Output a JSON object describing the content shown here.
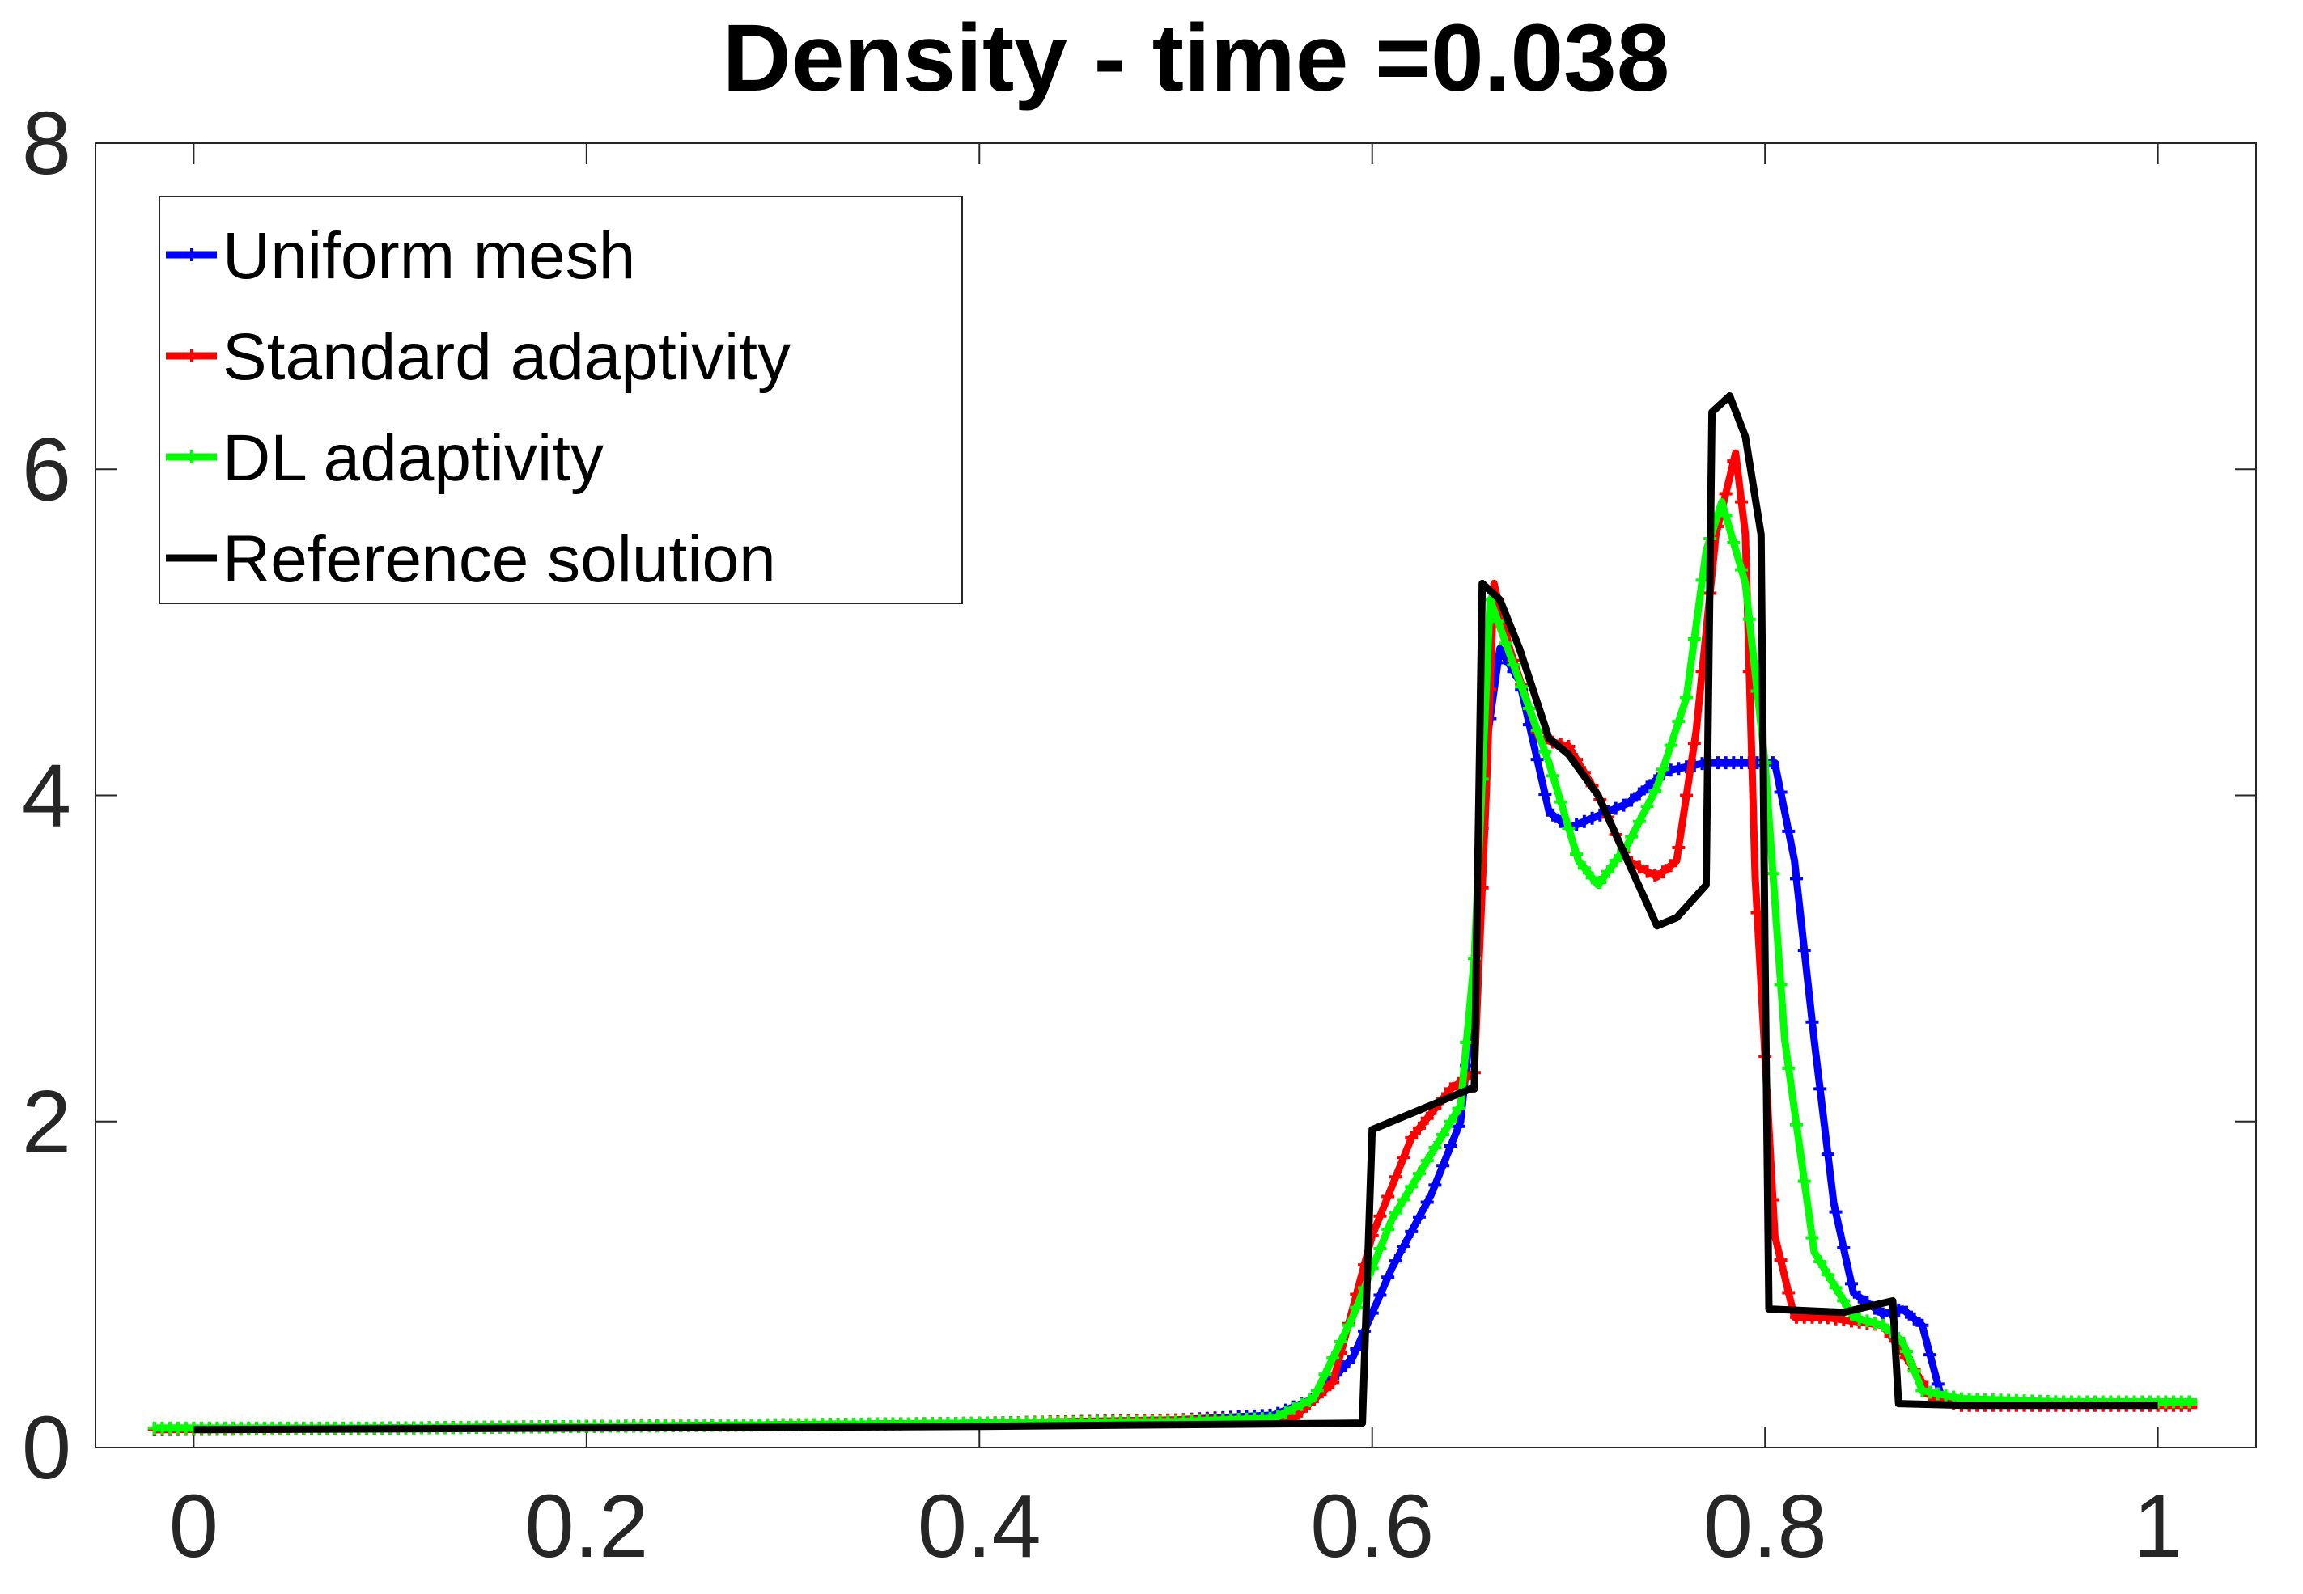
{
  "chart_data": {
    "type": "line",
    "title": "Density - time =0.038",
    "xlabel": "",
    "ylabel": "",
    "xlim": [
      -0.05,
      1.05
    ],
    "ylim": [
      0,
      8
    ],
    "xticks": [
      0,
      0.2,
      0.4,
      0.6,
      0.8,
      1
    ],
    "xtick_labels": [
      "0",
      "0.2",
      "0.4",
      "0.6",
      "0.8",
      "1"
    ],
    "yticks": [
      0,
      2,
      4,
      6,
      8
    ],
    "ytick_labels": [
      "0",
      "2",
      "4",
      "6",
      "8"
    ],
    "grid": false,
    "legend_position": "top-left",
    "series": [
      {
        "name": "Uniform mesh",
        "color": "#0000ff",
        "marker": "plus",
        "points": [
          [
            -0.02,
            0.11
          ],
          [
            0.1,
            0.12
          ],
          [
            0.2,
            0.13
          ],
          [
            0.3,
            0.14
          ],
          [
            0.4,
            0.15
          ],
          [
            0.5,
            0.17
          ],
          [
            0.55,
            0.2
          ],
          [
            0.57,
            0.3
          ],
          [
            0.59,
            0.55
          ],
          [
            0.61,
            1.1
          ],
          [
            0.63,
            1.55
          ],
          [
            0.645,
            2.0
          ],
          [
            0.652,
            2.8
          ],
          [
            0.658,
            4.3
          ],
          [
            0.665,
            4.9
          ],
          [
            0.675,
            4.7
          ],
          [
            0.69,
            3.9
          ],
          [
            0.7,
            3.8
          ],
          [
            0.71,
            3.85
          ],
          [
            0.73,
            3.95
          ],
          [
            0.75,
            4.15
          ],
          [
            0.77,
            4.2
          ],
          [
            0.79,
            4.2
          ],
          [
            0.805,
            4.2
          ],
          [
            0.815,
            3.6
          ],
          [
            0.825,
            2.5
          ],
          [
            0.835,
            1.5
          ],
          [
            0.845,
            0.95
          ],
          [
            0.86,
            0.82
          ],
          [
            0.87,
            0.85
          ],
          [
            0.88,
            0.75
          ],
          [
            0.89,
            0.3
          ],
          [
            0.9,
            0.26
          ],
          [
            1.0,
            0.26
          ],
          [
            1.02,
            0.26
          ]
        ]
      },
      {
        "name": "Standard adaptivity",
        "color": "#ff0000",
        "marker": "plus",
        "points": [
          [
            -0.02,
            0.11
          ],
          [
            0.1,
            0.12
          ],
          [
            0.2,
            0.13
          ],
          [
            0.3,
            0.14
          ],
          [
            0.4,
            0.15
          ],
          [
            0.5,
            0.17
          ],
          [
            0.56,
            0.18
          ],
          [
            0.58,
            0.4
          ],
          [
            0.6,
            1.3
          ],
          [
            0.62,
            1.9
          ],
          [
            0.64,
            2.2
          ],
          [
            0.652,
            2.3
          ],
          [
            0.658,
            4.0
          ],
          [
            0.662,
            5.3
          ],
          [
            0.67,
            4.9
          ],
          [
            0.685,
            4.35
          ],
          [
            0.7,
            4.3
          ],
          [
            0.715,
            4.0
          ],
          [
            0.73,
            3.6
          ],
          [
            0.745,
            3.5
          ],
          [
            0.755,
            3.6
          ],
          [
            0.765,
            4.4
          ],
          [
            0.775,
            5.6
          ],
          [
            0.785,
            6.1
          ],
          [
            0.79,
            5.6
          ],
          [
            0.795,
            3.5
          ],
          [
            0.805,
            1.3
          ],
          [
            0.815,
            0.8
          ],
          [
            0.83,
            0.8
          ],
          [
            0.86,
            0.75
          ],
          [
            0.875,
            0.5
          ],
          [
            0.885,
            0.3
          ],
          [
            0.9,
            0.26
          ],
          [
            1.0,
            0.26
          ],
          [
            1.02,
            0.26
          ]
        ]
      },
      {
        "name": "DL adaptivity",
        "color": "#00ff00",
        "marker": "plus",
        "points": [
          [
            -0.02,
            0.12
          ],
          [
            0.1,
            0.12
          ],
          [
            0.2,
            0.13
          ],
          [
            0.3,
            0.14
          ],
          [
            0.4,
            0.15
          ],
          [
            0.5,
            0.16
          ],
          [
            0.55,
            0.18
          ],
          [
            0.57,
            0.3
          ],
          [
            0.59,
            0.8
          ],
          [
            0.61,
            1.4
          ],
          [
            0.63,
            1.8
          ],
          [
            0.645,
            2.1
          ],
          [
            0.652,
            3.0
          ],
          [
            0.66,
            5.2
          ],
          [
            0.675,
            4.7
          ],
          [
            0.69,
            4.2
          ],
          [
            0.705,
            3.6
          ],
          [
            0.715,
            3.45
          ],
          [
            0.73,
            3.7
          ],
          [
            0.745,
            4.05
          ],
          [
            0.76,
            4.6
          ],
          [
            0.77,
            5.5
          ],
          [
            0.778,
            5.8
          ],
          [
            0.79,
            5.3
          ],
          [
            0.8,
            4.2
          ],
          [
            0.81,
            2.5
          ],
          [
            0.825,
            1.2
          ],
          [
            0.845,
            0.8
          ],
          [
            0.86,
            0.75
          ],
          [
            0.87,
            0.65
          ],
          [
            0.88,
            0.35
          ],
          [
            0.9,
            0.3
          ],
          [
            0.95,
            0.28
          ],
          [
            1.02,
            0.28
          ]
        ]
      },
      {
        "name": "Reference solution",
        "color": "#000000",
        "marker": "none",
        "points": [
          [
            0.0,
            0.11
          ],
          [
            0.2,
            0.12
          ],
          [
            0.4,
            0.13
          ],
          [
            0.59,
            0.15
          ],
          [
            0.595,
            0.15
          ],
          [
            0.6,
            1.95
          ],
          [
            0.65,
            2.2
          ],
          [
            0.652,
            2.2
          ],
          [
            0.656,
            5.3
          ],
          [
            0.665,
            5.2
          ],
          [
            0.675,
            4.9
          ],
          [
            0.69,
            4.35
          ],
          [
            0.7,
            4.25
          ],
          [
            0.715,
            4.0
          ],
          [
            0.73,
            3.6
          ],
          [
            0.745,
            3.2
          ],
          [
            0.755,
            3.25
          ],
          [
            0.77,
            3.45
          ],
          [
            0.773,
            6.35
          ],
          [
            0.782,
            6.45
          ],
          [
            0.79,
            6.2
          ],
          [
            0.798,
            5.6
          ],
          [
            0.8,
            3.0
          ],
          [
            0.802,
            0.85
          ],
          [
            0.84,
            0.83
          ],
          [
            0.865,
            0.9
          ],
          [
            0.868,
            0.27
          ],
          [
            0.9,
            0.26
          ],
          [
            1.0,
            0.26
          ]
        ]
      }
    ]
  }
}
